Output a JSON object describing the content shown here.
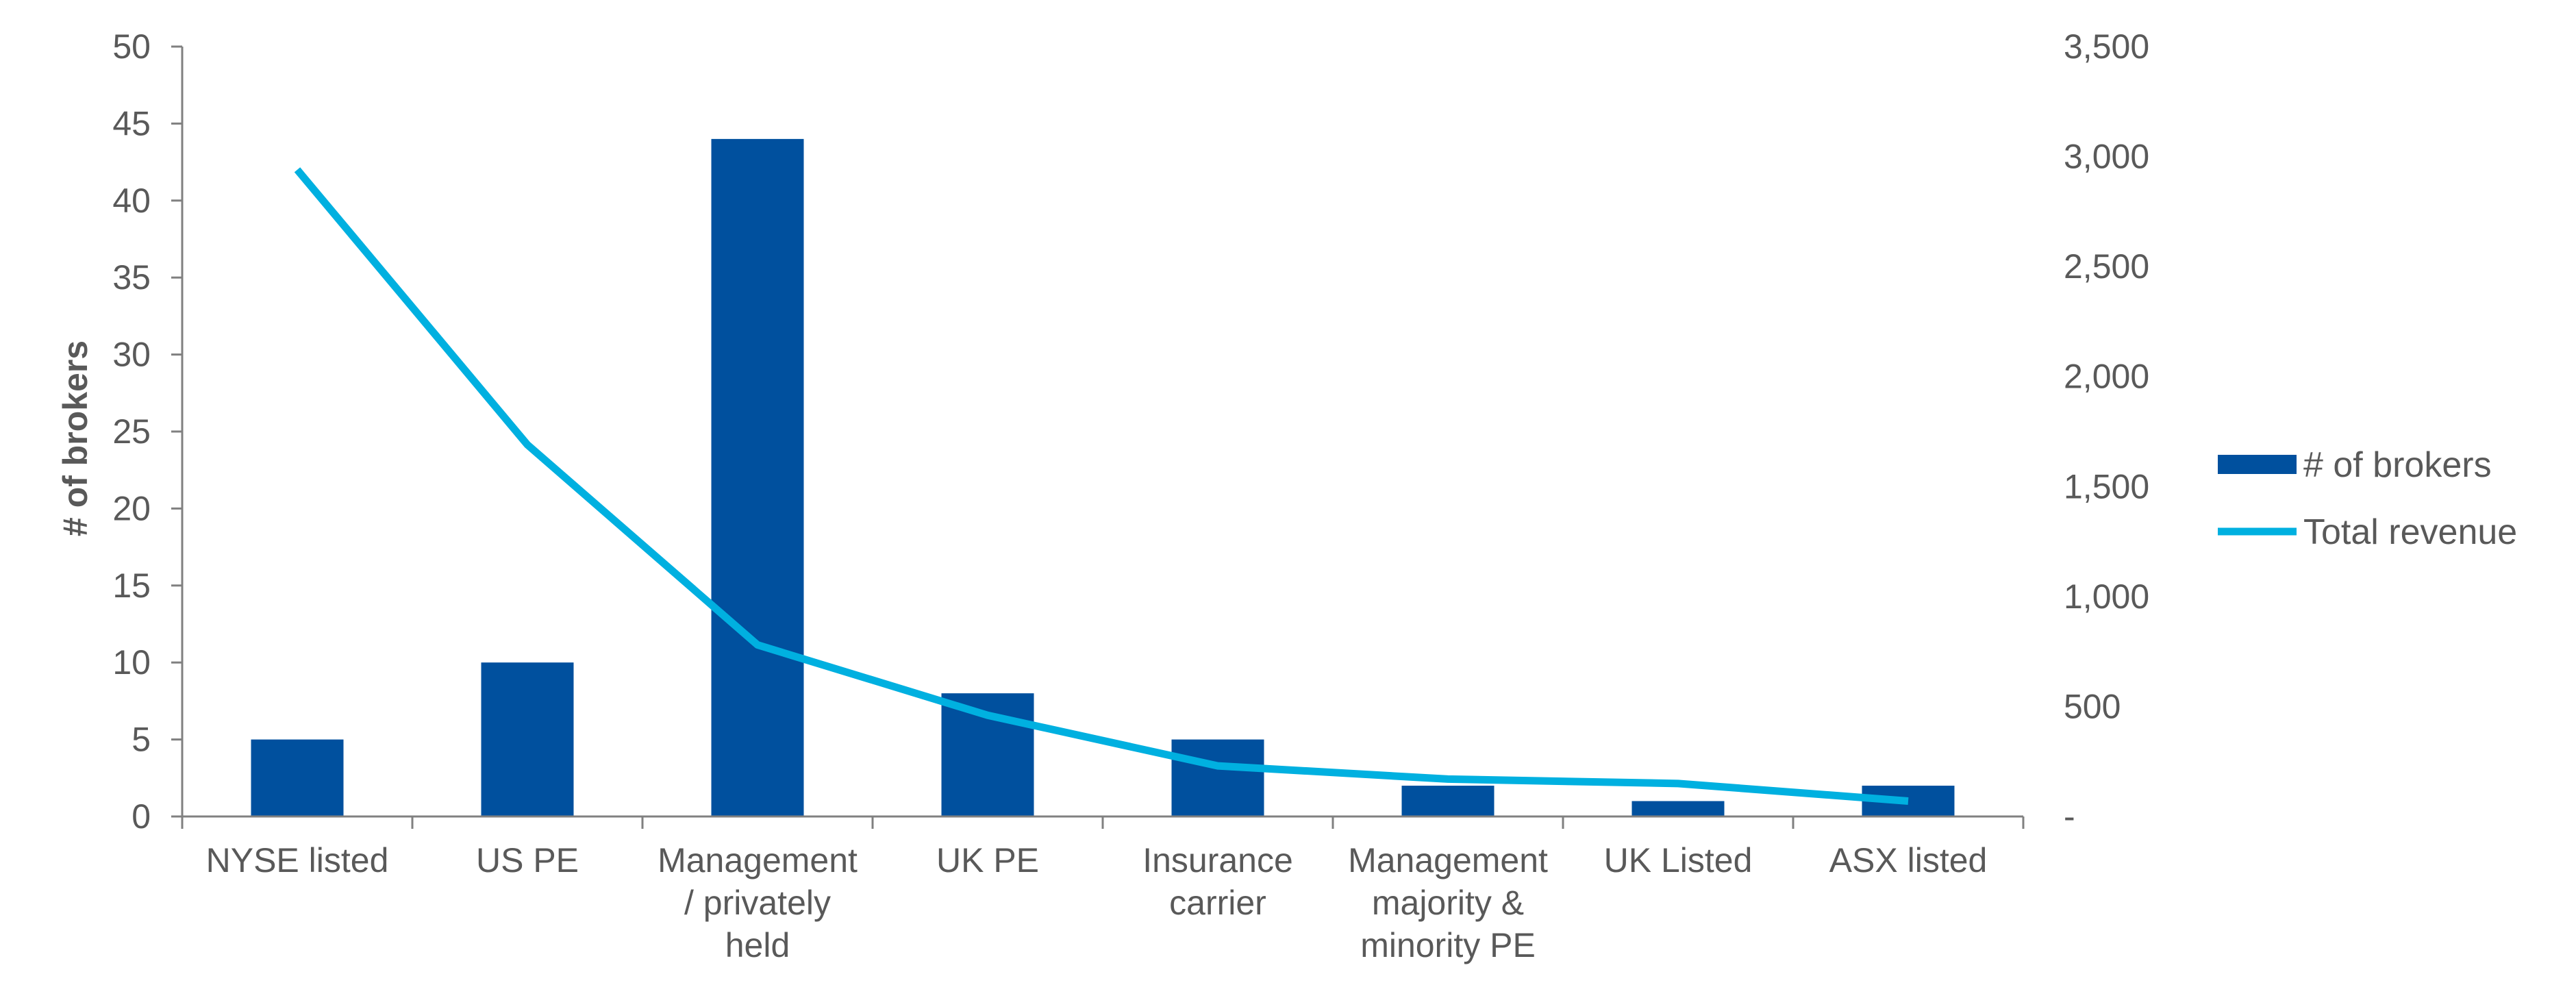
{
  "chart_data": {
    "type": "bar",
    "categories": [
      [
        "NYSE listed"
      ],
      [
        "US PE"
      ],
      [
        "Management",
        "/ privately",
        "held"
      ],
      [
        "UK PE"
      ],
      [
        "Insurance",
        "carrier"
      ],
      [
        "Management",
        "majority &",
        "minority PE"
      ],
      [
        "UK Listed"
      ],
      [
        "ASX listed"
      ]
    ],
    "series": [
      {
        "name": "# of brokers",
        "type": "bar",
        "axis": "left",
        "color": "#00509e",
        "values": [
          5,
          10,
          44,
          8,
          5,
          2,
          1,
          2
        ]
      },
      {
        "name": "Total revenue",
        "type": "line",
        "axis": "right",
        "color": "#00b0e0",
        "values": [
          2940,
          1690,
          780,
          460,
          230,
          170,
          150,
          70
        ]
      }
    ],
    "ylabel": "# of brokers",
    "y_left": {
      "min": 0,
      "max": 50,
      "ticks": [
        "0",
        "5",
        "10",
        "15",
        "20",
        "25",
        "30",
        "35",
        "40",
        "45",
        "50"
      ]
    },
    "y_right": {
      "min": 0,
      "max": 3500,
      "ticks": [
        "-",
        "500",
        "1,000",
        "1,500",
        "2,000",
        "2,500",
        "3,000",
        "3,500"
      ]
    },
    "grid": false,
    "legend_position": "right"
  }
}
